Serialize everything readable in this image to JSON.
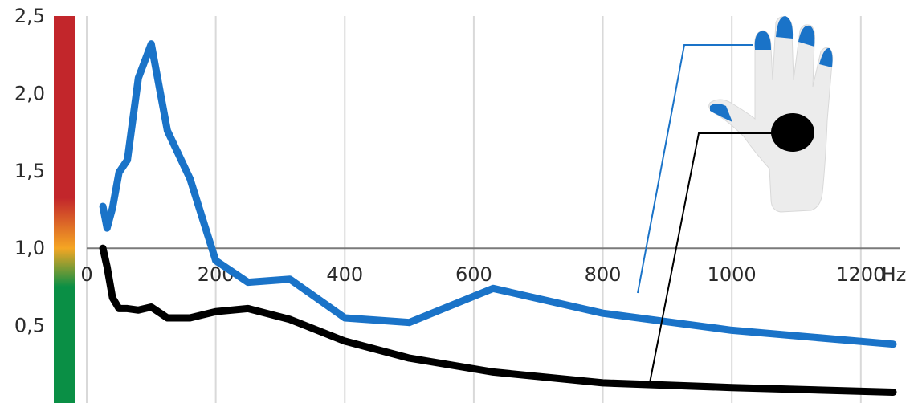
{
  "chart_data": {
    "type": "line",
    "xlim": [
      0,
      1260
    ],
    "ylim": [
      0,
      2.5
    ],
    "x_ticks": [
      0,
      200,
      400,
      600,
      800,
      1000,
      1200
    ],
    "x_tick_labels": [
      "0",
      "200",
      "400",
      "600",
      "800",
      "1000",
      "1200"
    ],
    "x_unit_label": "Hz",
    "y_ticks": [
      0.5,
      1.0,
      1.5,
      2.0,
      2.5
    ],
    "y_tick_labels": [
      "0,5",
      "1,0",
      "1,5",
      "2,0",
      "2,5"
    ],
    "reference_line_y": 1.0,
    "grid": "vertical",
    "series": [
      {
        "color": "#1a73c8",
        "x": [
          25,
          31.5,
          40,
          50,
          63,
          80,
          100,
          125,
          160,
          200,
          250,
          315,
          400,
          500,
          630,
          800,
          1000,
          1250
        ],
        "y": [
          1.27,
          1.13,
          1.26,
          1.49,
          1.57,
          2.1,
          2.32,
          1.76,
          1.45,
          0.92,
          0.78,
          0.8,
          0.55,
          0.52,
          0.74,
          0.58,
          0.47,
          0.38
        ]
      },
      {
        "color": "#000000",
        "x": [
          25,
          31.5,
          40,
          50,
          63,
          80,
          100,
          125,
          160,
          200,
          250,
          315,
          400,
          500,
          630,
          800,
          1000,
          1250
        ],
        "y": [
          1.0,
          0.88,
          0.68,
          0.61,
          0.61,
          0.6,
          0.62,
          0.55,
          0.55,
          0.59,
          0.61,
          0.54,
          0.4,
          0.29,
          0.2,
          0.13,
          0.1,
          0.07
        ]
      }
    ],
    "colors": {
      "scale_bar": [
        "#0a8f45",
        "#f5a623",
        "#c2262b"
      ],
      "reference_line": "#7a7a7a",
      "grid": "#d9d9d9"
    },
    "icons": [
      "glove-icon",
      "fingertip-marker-icon",
      "palm-marker-icon"
    ]
  }
}
